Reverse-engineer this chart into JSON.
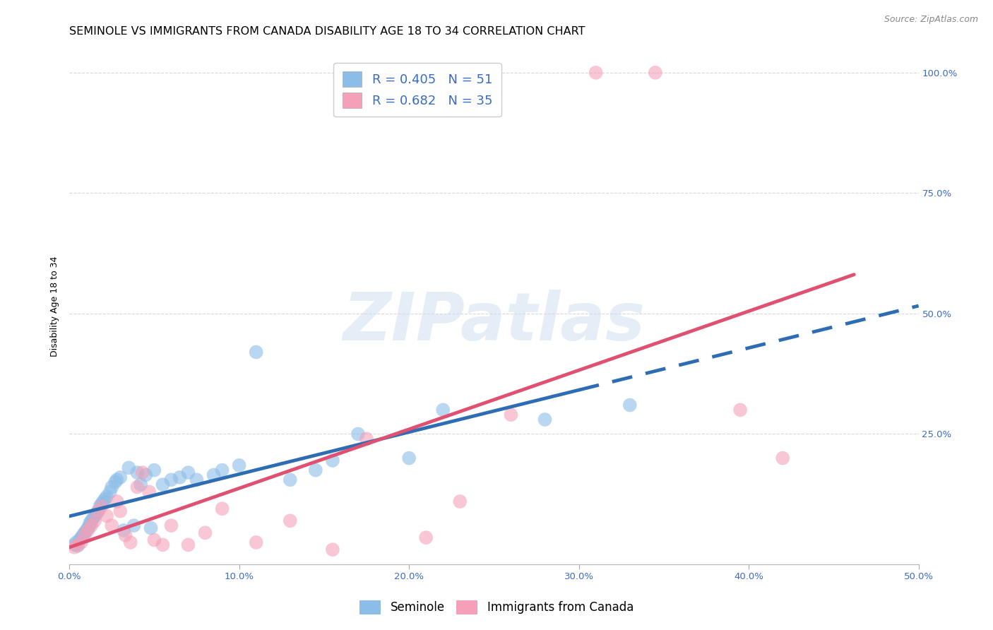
{
  "title": "SEMINOLE VS IMMIGRANTS FROM CANADA DISABILITY AGE 18 TO 34 CORRELATION CHART",
  "source": "Source: ZipAtlas.com",
  "ylabel": "Disability Age 18 to 34",
  "xlim": [
    0.0,
    0.5
  ],
  "ylim": [
    -0.02,
    1.05
  ],
  "xticks": [
    0.0,
    0.1,
    0.2,
    0.3,
    0.4,
    0.5
  ],
  "xticklabels": [
    "0.0%",
    "10.0%",
    "20.0%",
    "30.0%",
    "40.0%",
    "50.0%"
  ],
  "yticks": [
    0.0,
    0.25,
    0.5,
    0.75,
    1.0
  ],
  "yticklabels": [
    "",
    "25.0%",
    "50.0%",
    "75.0%",
    "100.0%"
  ],
  "grid_color": "#d8d8d8",
  "background_color": "#ffffff",
  "watermark_text": "ZIPatlas",
  "seminole_color": "#8bbde8",
  "canada_color": "#f4a0b8",
  "seminole_R": 0.405,
  "seminole_N": 51,
  "canada_R": 0.682,
  "canada_N": 35,
  "seminole_x": [
    0.003,
    0.004,
    0.005,
    0.006,
    0.007,
    0.008,
    0.009,
    0.01,
    0.011,
    0.012,
    0.012,
    0.013,
    0.014,
    0.015,
    0.016,
    0.017,
    0.018,
    0.019,
    0.02,
    0.021,
    0.022,
    0.024,
    0.025,
    0.027,
    0.028,
    0.03,
    0.032,
    0.035,
    0.038,
    0.04,
    0.042,
    0.045,
    0.048,
    0.05,
    0.055,
    0.06,
    0.065,
    0.07,
    0.075,
    0.085,
    0.09,
    0.1,
    0.11,
    0.13,
    0.145,
    0.155,
    0.17,
    0.2,
    0.22,
    0.28,
    0.33
  ],
  "seminole_y": [
    0.02,
    0.025,
    0.018,
    0.03,
    0.035,
    0.04,
    0.045,
    0.05,
    0.055,
    0.06,
    0.065,
    0.07,
    0.075,
    0.08,
    0.085,
    0.09,
    0.1,
    0.105,
    0.11,
    0.115,
    0.12,
    0.13,
    0.14,
    0.15,
    0.155,
    0.16,
    0.05,
    0.18,
    0.06,
    0.17,
    0.145,
    0.165,
    0.055,
    0.175,
    0.145,
    0.155,
    0.16,
    0.17,
    0.155,
    0.165,
    0.175,
    0.185,
    0.42,
    0.155,
    0.175,
    0.195,
    0.25,
    0.2,
    0.3,
    0.28,
    0.31
  ],
  "canada_x": [
    0.003,
    0.005,
    0.007,
    0.009,
    0.011,
    0.013,
    0.015,
    0.017,
    0.019,
    0.022,
    0.025,
    0.028,
    0.03,
    0.033,
    0.036,
    0.04,
    0.043,
    0.047,
    0.05,
    0.055,
    0.06,
    0.07,
    0.08,
    0.09,
    0.11,
    0.13,
    0.155,
    0.175,
    0.21,
    0.23,
    0.26,
    0.31,
    0.345,
    0.395,
    0.42
  ],
  "canada_y": [
    0.015,
    0.02,
    0.025,
    0.04,
    0.05,
    0.06,
    0.07,
    0.09,
    0.1,
    0.08,
    0.06,
    0.11,
    0.09,
    0.04,
    0.025,
    0.14,
    0.17,
    0.13,
    0.03,
    0.02,
    0.06,
    0.02,
    0.045,
    0.095,
    0.025,
    0.07,
    0.01,
    0.24,
    0.035,
    0.11,
    0.29,
    1.0,
    1.0,
    0.3,
    0.2
  ],
  "seminole_line_color": "#2e6db4",
  "canada_line_color": "#e05070",
  "blue_line_start_x": 0.0,
  "blue_line_solid_end_x": 0.3,
  "blue_line_end_x": 0.5,
  "pink_line_start_x": 0.0,
  "pink_line_end_x": 0.462,
  "title_fontsize": 11.5,
  "axis_label_fontsize": 9,
  "tick_fontsize": 9.5,
  "legend_fontsize": 13
}
